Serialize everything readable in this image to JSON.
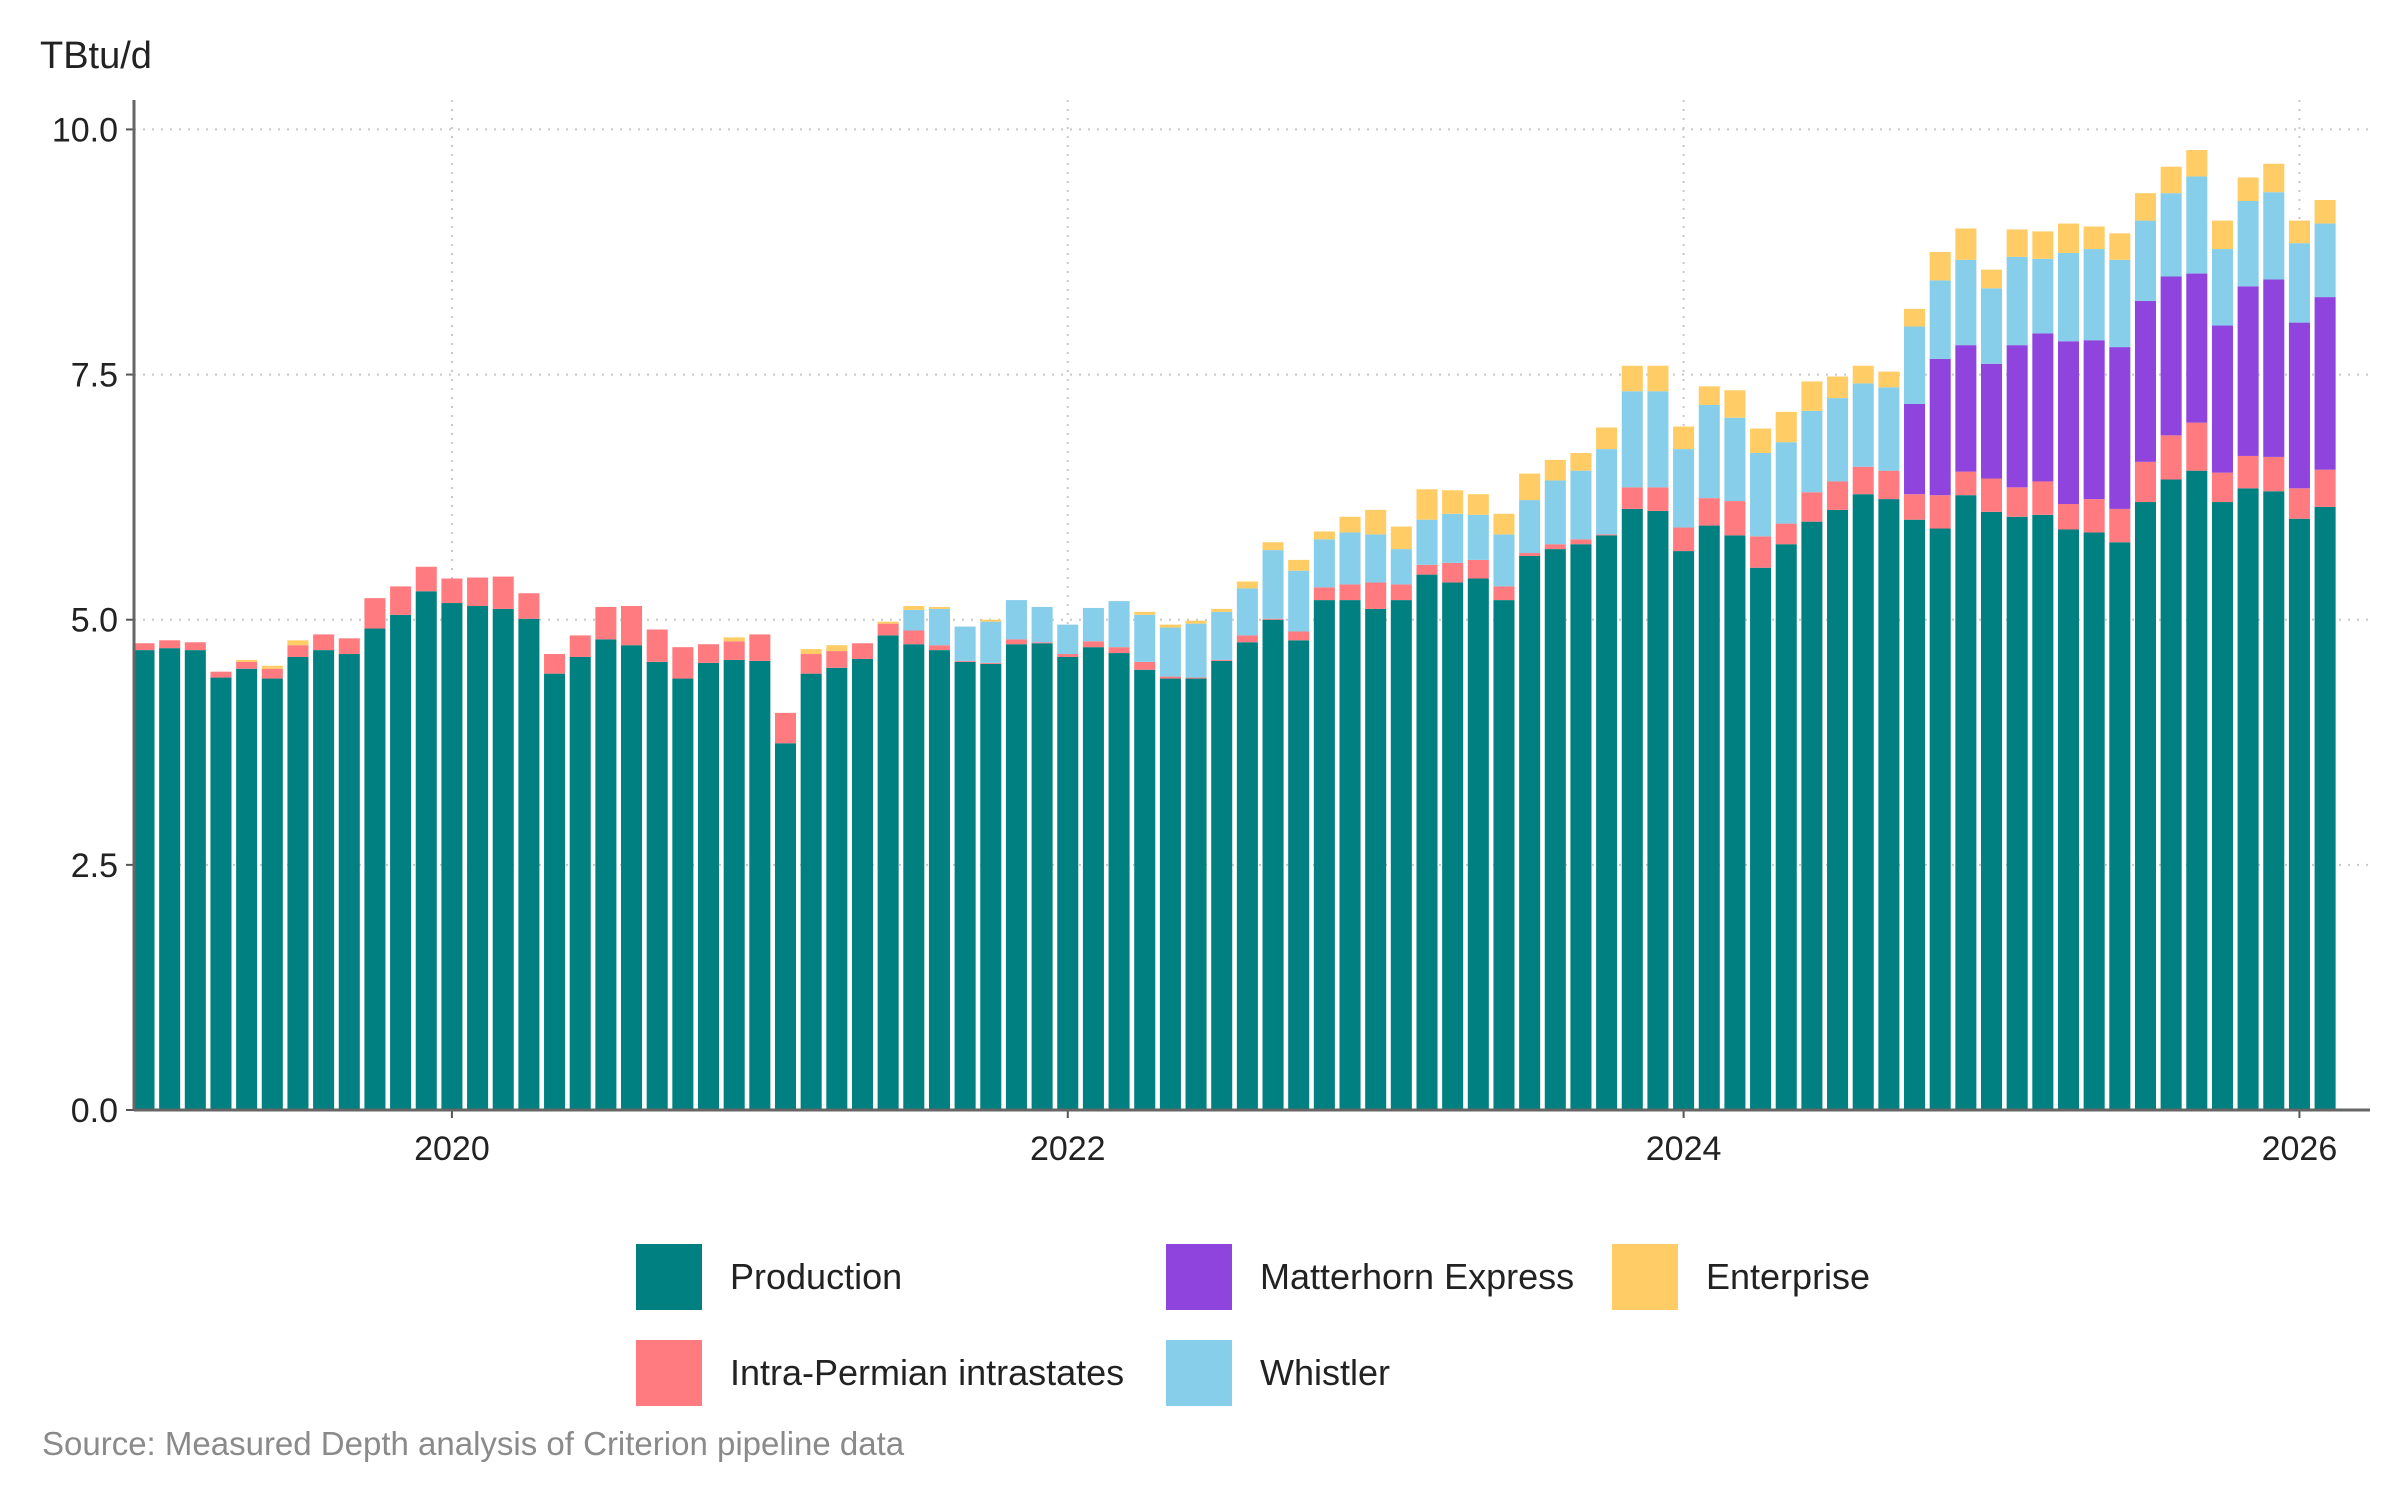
{
  "chart_data": {
    "type": "bar",
    "stacked": true,
    "title": "",
    "ylabel": "TBtu/d",
    "xlabel": "",
    "ylim": [
      0,
      10.3
    ],
    "yticks": [
      0.0,
      2.5,
      5.0,
      7.5,
      10.0
    ],
    "ytick_labels": [
      "0.0",
      "2.5",
      "5.0",
      "7.5",
      "10.0"
    ],
    "xticks": [
      "2020-01",
      "2022-01",
      "2024-01",
      "2026-01"
    ],
    "xtick_labels": [
      "2020",
      "2022",
      "2024",
      "2026"
    ],
    "grid": "dotted, both axes",
    "legend_position": "bottom",
    "categories": [
      "2019-01",
      "2019-02",
      "2019-03",
      "2019-04",
      "2019-05",
      "2019-06",
      "2019-07",
      "2019-08",
      "2019-09",
      "2019-10",
      "2019-11",
      "2019-12",
      "2020-01",
      "2020-02",
      "2020-03",
      "2020-04",
      "2020-05",
      "2020-06",
      "2020-07",
      "2020-08",
      "2020-09",
      "2020-10",
      "2020-11",
      "2020-12",
      "2021-01",
      "2021-02",
      "2021-03",
      "2021-04",
      "2021-05",
      "2021-06",
      "2021-07",
      "2021-08",
      "2021-09",
      "2021-10",
      "2021-11",
      "2021-12",
      "2022-01",
      "2022-02",
      "2022-03",
      "2022-04",
      "2022-05",
      "2022-06",
      "2022-07",
      "2022-08",
      "2022-09",
      "2022-10",
      "2022-11",
      "2022-12",
      "2023-01",
      "2023-02",
      "2023-03",
      "2023-04",
      "2023-05",
      "2023-06",
      "2023-07",
      "2023-08",
      "2023-09",
      "2023-10",
      "2023-11",
      "2023-12",
      "2024-01",
      "2024-02",
      "2024-03",
      "2024-04",
      "2024-05",
      "2024-06",
      "2024-07",
      "2024-08",
      "2024-09",
      "2024-10",
      "2024-11",
      "2024-12",
      "2025-01",
      "2025-02",
      "2025-03",
      "2025-04",
      "2025-05",
      "2025-06",
      "2025-07",
      "2025-08",
      "2025-09",
      "2025-10",
      "2025-11",
      "2025-12",
      "2026-01",
      "2026-02"
    ],
    "series": [
      {
        "name": "Production",
        "color": "#008080",
        "values": [
          4.69,
          4.71,
          4.69,
          4.41,
          4.5,
          4.4,
          4.62,
          4.69,
          4.65,
          4.91,
          5.05,
          5.29,
          5.17,
          5.14,
          5.11,
          5.01,
          4.45,
          4.62,
          4.8,
          4.74,
          4.57,
          4.4,
          4.56,
          4.59,
          4.58,
          3.74,
          4.45,
          4.51,
          4.6,
          4.84,
          4.75,
          4.69,
          4.57,
          4.55,
          4.75,
          4.76,
          4.62,
          4.72,
          4.66,
          4.49,
          4.4,
          4.4,
          4.58,
          4.77,
          5.0,
          4.79,
          5.2,
          5.2,
          5.11,
          5.2,
          5.46,
          5.38,
          5.42,
          5.2,
          5.65,
          5.72,
          5.77,
          5.86,
          6.13,
          6.11,
          5.7,
          5.96,
          5.86,
          5.53,
          5.77,
          6.0,
          6.12,
          6.28,
          6.23,
          6.02,
          5.93,
          6.27,
          6.1,
          6.05,
          6.07,
          5.92,
          5.89,
          5.79,
          6.2,
          6.43,
          6.52,
          6.2,
          6.34,
          6.31,
          6.03,
          6.15
        ]
      },
      {
        "name": "Intra-Permian intrastates",
        "color": "#FF7B80",
        "values": [
          0.07,
          0.08,
          0.08,
          0.06,
          0.07,
          0.1,
          0.12,
          0.16,
          0.16,
          0.31,
          0.29,
          0.25,
          0.25,
          0.29,
          0.33,
          0.26,
          0.2,
          0.22,
          0.33,
          0.4,
          0.33,
          0.32,
          0.19,
          0.19,
          0.27,
          0.31,
          0.2,
          0.17,
          0.16,
          0.12,
          0.14,
          0.05,
          0.01,
          0.01,
          0.05,
          0.01,
          0.03,
          0.06,
          0.06,
          0.08,
          0.02,
          0.01,
          0.01,
          0.07,
          0.01,
          0.09,
          0.13,
          0.16,
          0.27,
          0.16,
          0.1,
          0.2,
          0.19,
          0.14,
          0.03,
          0.05,
          0.05,
          0.01,
          0.22,
          0.24,
          0.24,
          0.28,
          0.35,
          0.32,
          0.21,
          0.3,
          0.29,
          0.28,
          0.29,
          0.26,
          0.34,
          0.24,
          0.34,
          0.3,
          0.34,
          0.26,
          0.34,
          0.34,
          0.41,
          0.45,
          0.49,
          0.3,
          0.33,
          0.35,
          0.31,
          0.38
        ]
      },
      {
        "name": "Matterhorn Express",
        "color": "#8E44DD",
        "values": [
          0,
          0,
          0,
          0,
          0,
          0,
          0,
          0,
          0,
          0,
          0,
          0,
          0,
          0,
          0,
          0,
          0,
          0,
          0,
          0,
          0,
          0,
          0,
          0,
          0,
          0,
          0,
          0,
          0,
          0,
          0,
          0,
          0,
          0,
          0,
          0,
          0,
          0,
          0,
          0,
          0,
          0,
          0,
          0,
          0,
          0,
          0,
          0,
          0,
          0,
          0,
          0,
          0,
          0,
          0,
          0,
          0,
          0,
          0,
          0,
          0,
          0,
          0,
          0,
          0,
          0,
          0,
          0,
          0,
          0.92,
          1.39,
          1.29,
          1.17,
          1.45,
          1.51,
          1.66,
          1.62,
          1.65,
          1.64,
          1.62,
          1.52,
          1.5,
          1.73,
          1.81,
          1.69,
          1.76
        ]
      },
      {
        "name": "Whistler",
        "color": "#87CEEB",
        "values": [
          0,
          0,
          0,
          0,
          0,
          0,
          0,
          0,
          0,
          0,
          0,
          0,
          0,
          0,
          0,
          0,
          0,
          0,
          0,
          0,
          0,
          0,
          0,
          0,
          0,
          0,
          0,
          0,
          0,
          0,
          0.21,
          0.37,
          0.35,
          0.42,
          0.4,
          0.36,
          0.3,
          0.34,
          0.47,
          0.48,
          0.5,
          0.55,
          0.49,
          0.48,
          0.7,
          0.62,
          0.49,
          0.53,
          0.49,
          0.36,
          0.46,
          0.5,
          0.46,
          0.53,
          0.54,
          0.65,
          0.7,
          0.87,
          0.98,
          0.98,
          0.8,
          0.95,
          0.85,
          0.85,
          0.83,
          0.83,
          0.85,
          0.85,
          0.85,
          0.79,
          0.8,
          0.87,
          0.77,
          0.9,
          0.76,
          0.9,
          0.93,
          0.89,
          0.82,
          0.85,
          0.99,
          0.78,
          0.87,
          0.89,
          0.81,
          0.75
        ]
      },
      {
        "name": "Enterprise",
        "color": "#FFCC66",
        "values": [
          0,
          0,
          0,
          0,
          0.02,
          0.03,
          0.05,
          0,
          0,
          0,
          0,
          0,
          0,
          0,
          0,
          0,
          0,
          0,
          0,
          0,
          0,
          0,
          0,
          0.04,
          0,
          0,
          0.05,
          0.06,
          0,
          0.02,
          0.04,
          0.02,
          0,
          0.02,
          0,
          0,
          0,
          0,
          0,
          0.03,
          0.03,
          0.03,
          0.03,
          0.07,
          0.08,
          0.11,
          0.08,
          0.16,
          0.25,
          0.23,
          0.31,
          0.24,
          0.21,
          0.21,
          0.27,
          0.21,
          0.18,
          0.22,
          0.26,
          0.26,
          0.23,
          0.19,
          0.28,
          0.25,
          0.31,
          0.3,
          0.22,
          0.18,
          0.16,
          0.18,
          0.29,
          0.32,
          0.19,
          0.28,
          0.28,
          0.3,
          0.23,
          0.27,
          0.28,
          0.27,
          0.27,
          0.29,
          0.24,
          0.29,
          0.23,
          0.24
        ]
      }
    ]
  },
  "source": "Source: Measured Depth analysis of Criterion pipeline data"
}
